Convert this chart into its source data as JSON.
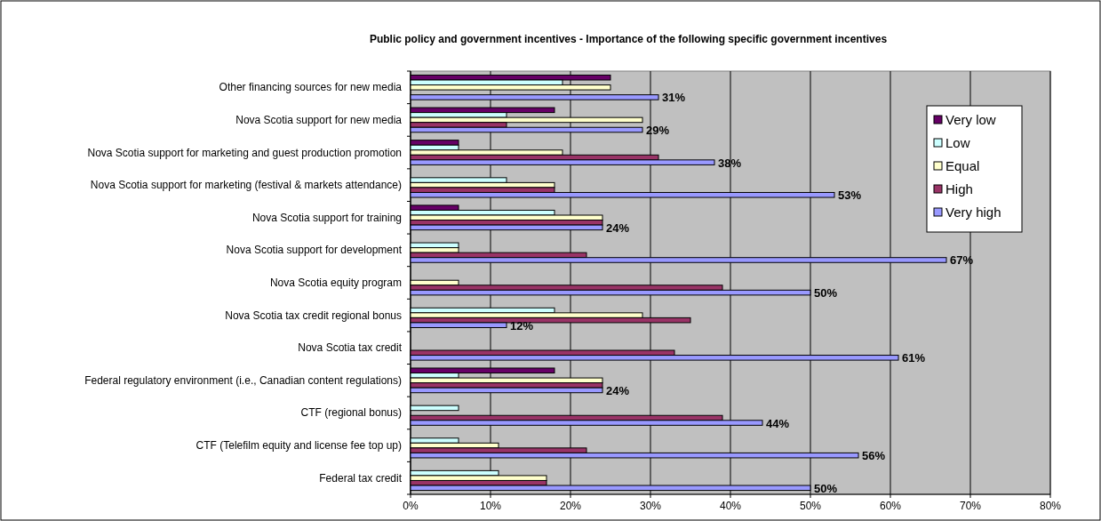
{
  "chart_data": {
    "type": "bar",
    "orientation": "horizontal",
    "title": "Public policy and government incentives - Importance of the following specific government incentives",
    "categories": [
      "Other financing sources for new media",
      "Nova Scotia support for new media",
      "Nova Scotia support for marketing and guest production promotion",
      "Nova Scotia support for marketing (festival & markets attendance)",
      "Nova Scotia support for training",
      "Nova Scotia support for development",
      "Nova Scotia equity program",
      "Nova Scotia tax credit regional bonus",
      "Nova Scotia tax credit",
      "Federal regulatory environment (i.e., Canadian content regulations)",
      "CTF (regional bonus)",
      "CTF (Telefilm equity and license fee top up)",
      "Federal tax credit"
    ],
    "series": [
      {
        "name": "Very low",
        "color": "#660066",
        "values": [
          25,
          18,
          6,
          null,
          6,
          null,
          null,
          null,
          null,
          18,
          null,
          null,
          null
        ]
      },
      {
        "name": "Low",
        "color": "#ccffff",
        "values": [
          19,
          12,
          6,
          12,
          18,
          6,
          null,
          18,
          null,
          6,
          6,
          6,
          11
        ]
      },
      {
        "name": "Equal",
        "color": "#ffffcc",
        "values": [
          25,
          29,
          19,
          18,
          24,
          6,
          6,
          29,
          null,
          24,
          null,
          11,
          17
        ]
      },
      {
        "name": "High",
        "color": "#993366",
        "values": [
          null,
          12,
          31,
          18,
          24,
          22,
          39,
          35,
          33,
          24,
          39,
          22,
          17
        ]
      },
      {
        "name": "Very high",
        "color": "#9999ff",
        "values": [
          31,
          29,
          38,
          53,
          24,
          67,
          50,
          12,
          61,
          24,
          44,
          56,
          50
        ],
        "value_labels": [
          "31%",
          "29%",
          "38%",
          "53%",
          "24%",
          "67%",
          "50%",
          "12%",
          "61%",
          "24%",
          "44%",
          "56%",
          "50%"
        ]
      }
    ],
    "xlim": [
      0,
      80
    ],
    "xticks": [
      {
        "value": 0,
        "label": "0%"
      },
      {
        "value": 10,
        "label": "10%"
      },
      {
        "value": 20,
        "label": "20%"
      },
      {
        "value": 30,
        "label": "30%"
      },
      {
        "value": 40,
        "label": "40%"
      },
      {
        "value": 50,
        "label": "50%"
      },
      {
        "value": 60,
        "label": "60%"
      },
      {
        "value": 70,
        "label": "70%"
      },
      {
        "value": 80,
        "label": "80%"
      }
    ],
    "grid": "x",
    "legend": "top right"
  }
}
